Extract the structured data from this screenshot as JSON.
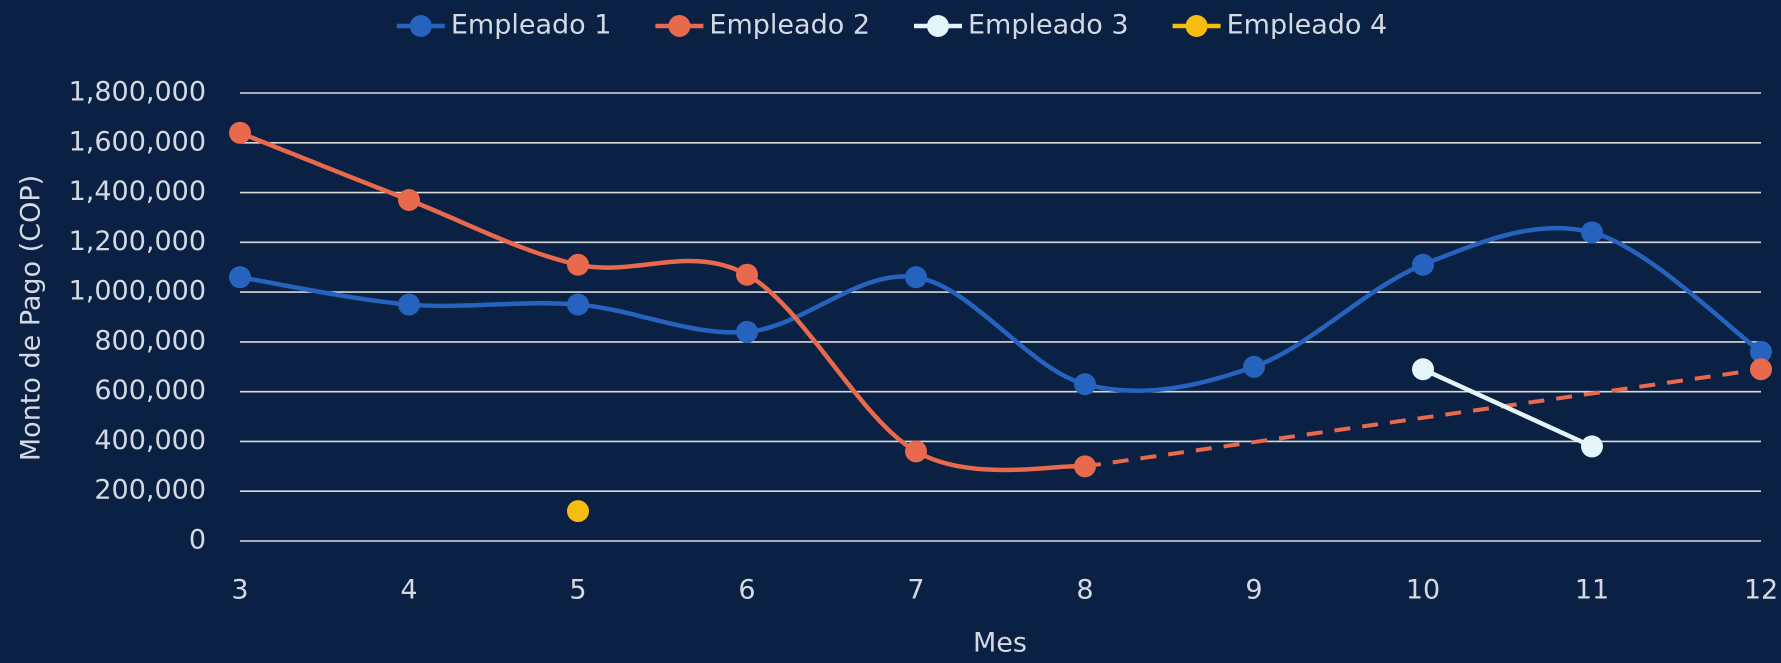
{
  "chart_data": {
    "type": "line",
    "x_label": "Mes",
    "y_label": "Monto de Pago (COP)",
    "x": [
      3,
      4,
      5,
      6,
      7,
      8,
      9,
      10,
      11,
      12
    ],
    "xlim": [
      3,
      12
    ],
    "xticks": [
      3,
      4,
      5,
      6,
      7,
      8,
      9,
      10,
      11,
      12
    ],
    "ylim": [
      0,
      1800000
    ],
    "yticks": [
      0,
      {
        "value": 200000,
        "label": "200,000"
      },
      {
        "value": 400000,
        "label": "400,000"
      },
      {
        "value": 600000,
        "label": "600,000"
      },
      {
        "value": 800000,
        "label": "800,000"
      },
      {
        "value": 1000000,
        "label": "1,000,000"
      },
      {
        "value": 1200000,
        "label": "1,200,000"
      },
      {
        "value": 1400000,
        "label": "1,400,000"
      },
      {
        "value": 1600000,
        "label": "1,600,000"
      },
      {
        "value": 1800000,
        "label": "1,800,000"
      }
    ],
    "grid": true,
    "smooth": true,
    "gaps": "dashed",
    "legend": "top",
    "series": [
      {
        "name": "Empleado 1",
        "color": "#2563be",
        "values": [
          1060000,
          950000,
          950000,
          840000,
          1060000,
          630000,
          700000,
          1110000,
          1240000,
          760000
        ]
      },
      {
        "name": "Empleado 2",
        "color": "#e8694c",
        "values": [
          1640000,
          1370000,
          1110000,
          1070000,
          360000,
          300000,
          null,
          null,
          null,
          690000
        ]
      },
      {
        "name": "Empleado 3",
        "color": "#e3f5f8",
        "values": [
          null,
          null,
          null,
          null,
          null,
          null,
          null,
          690000,
          380000,
          null
        ]
      },
      {
        "name": "Empleado 4",
        "color": "#f5bd12",
        "values": [
          null,
          null,
          120000,
          null,
          null,
          null,
          null,
          null,
          null,
          null
        ]
      }
    ]
  }
}
